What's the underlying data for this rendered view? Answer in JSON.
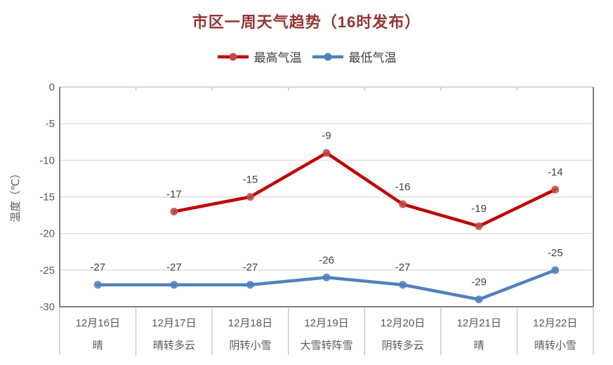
{
  "title": "市区一周天气趋势（16时发布）",
  "y_axis_title": "温度（℃）",
  "colors": {
    "title": "#943634",
    "high_series": "#C00000",
    "high_marker": "#BE4B48",
    "low_series": "#4F81BD",
    "low_marker": "#4F81BD",
    "grid": "#D9D9D9",
    "zero_axis": "#BFBFBF",
    "plot_border": "#7F7F7F",
    "axis_text": "#595959",
    "data_label_text": "#404040"
  },
  "chart_data": {
    "type": "line",
    "title": "市区一周天气趋势（16时发布）",
    "ylabel": "温度（℃）",
    "ylim": [
      -30,
      0
    ],
    "yticks": [
      0,
      -5,
      -10,
      -15,
      -20,
      -25,
      -30
    ],
    "grid": true,
    "legend_position": "top",
    "categories": [
      {
        "date": "12月16日",
        "weather": "晴"
      },
      {
        "date": "12月17日",
        "weather": "晴转多云"
      },
      {
        "date": "12月18日",
        "weather": "阴转小雪"
      },
      {
        "date": "12月19日",
        "weather": "大雪转阵雪"
      },
      {
        "date": "12月20日",
        "weather": "阴转多云"
      },
      {
        "date": "12月21日",
        "weather": "晴"
      },
      {
        "date": "12月22日",
        "weather": "晴转小雪"
      }
    ],
    "series": [
      {
        "name": "最高气温",
        "color": "#C00000",
        "marker_color": "#BE4B48",
        "values": [
          null,
          -17,
          -15,
          -9,
          -16,
          -19,
          -14
        ]
      },
      {
        "name": "最低气温",
        "color": "#4F81BD",
        "marker_color": "#4F81BD",
        "values": [
          -27,
          -27,
          -27,
          -26,
          -27,
          -29,
          -25
        ]
      }
    ]
  }
}
